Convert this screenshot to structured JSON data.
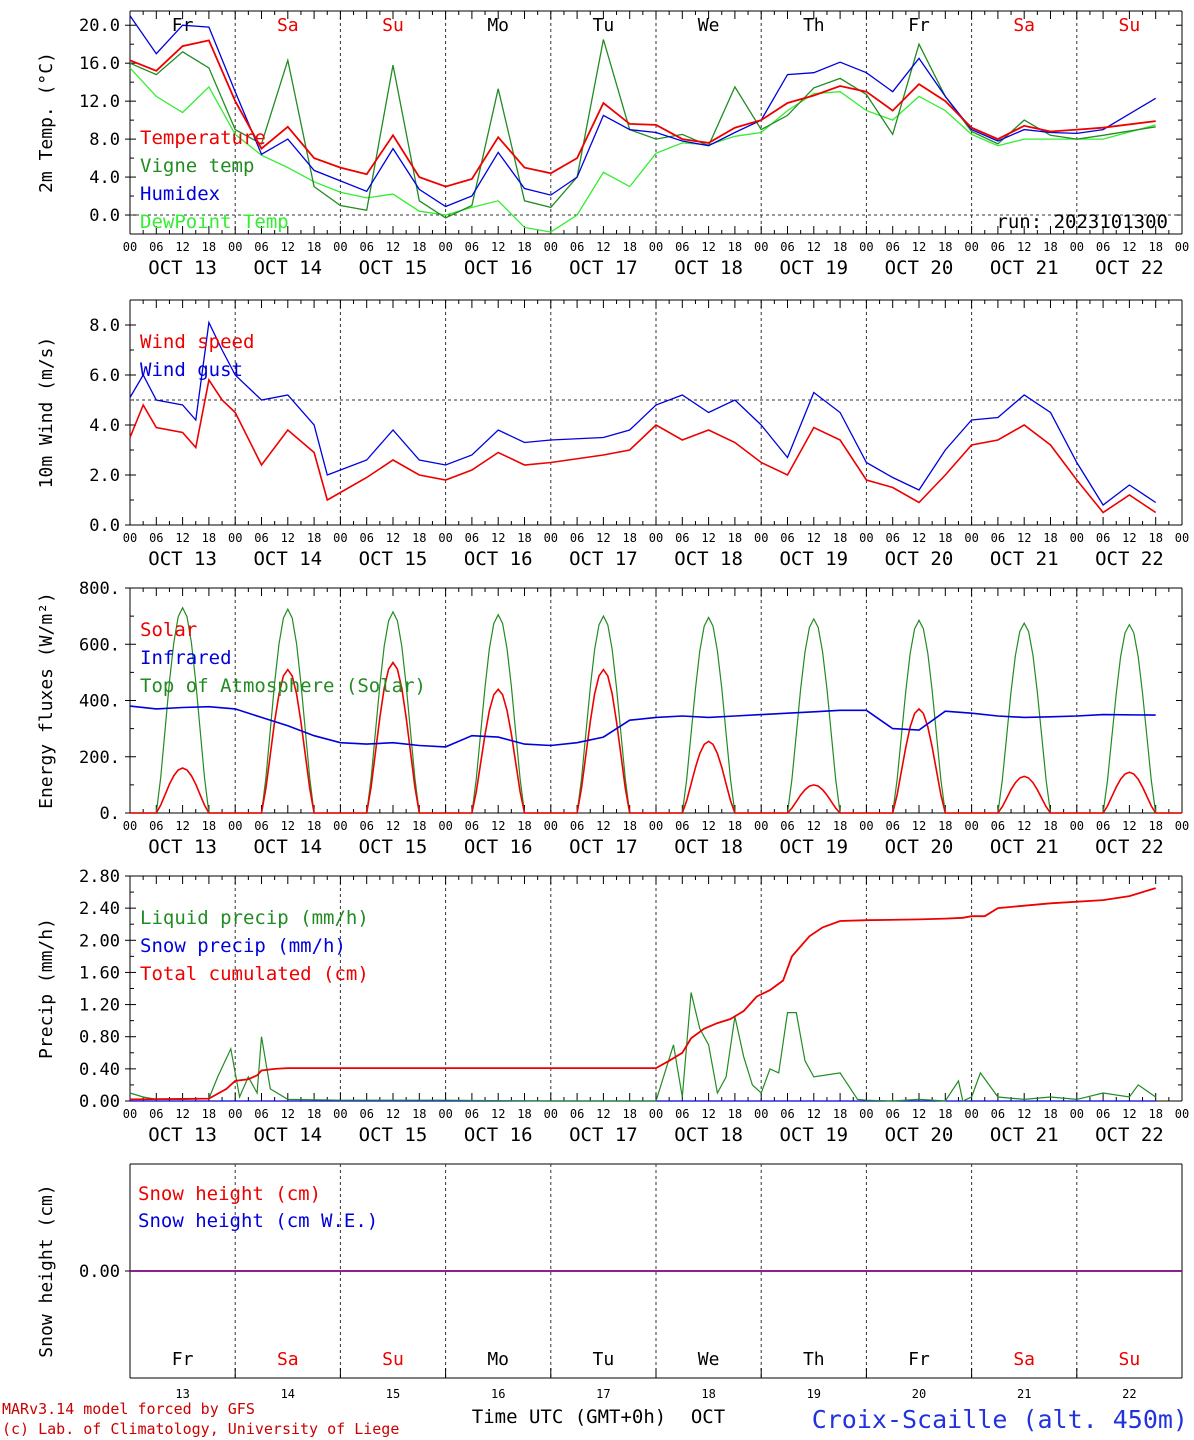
{
  "run_label": "run: 2023101300",
  "x_axis": {
    "hour_labels": [
      "00",
      "06",
      "12",
      "18"
    ],
    "end_label": "00",
    "dates": [
      "OCT 13",
      "OCT 14",
      "OCT 15",
      "OCT 16",
      "OCT 17",
      "OCT 18",
      "OCT 19",
      "OCT 20",
      "OCT 21",
      "OCT 22"
    ],
    "day_names": [
      {
        "name": "Fr",
        "color": "#000000"
      },
      {
        "name": "Sa",
        "color": "#ee0000"
      },
      {
        "name": "Su",
        "color": "#ee0000"
      },
      {
        "name": "Mo",
        "color": "#000000"
      },
      {
        "name": "Tu",
        "color": "#000000"
      },
      {
        "name": "We",
        "color": "#000000"
      },
      {
        "name": "Th",
        "color": "#000000"
      },
      {
        "name": "Fr",
        "color": "#000000"
      },
      {
        "name": "Sa",
        "color": "#ee0000"
      },
      {
        "name": "Su",
        "color": "#ee0000"
      }
    ],
    "day_numbers": [
      "13",
      "14",
      "15",
      "16",
      "17",
      "18",
      "19",
      "20",
      "21",
      "22"
    ],
    "time_label": "Time UTC (GMT+0h)",
    "month_label": "OCT"
  },
  "footer": {
    "line1": "MARv3.14 model forced by GFS",
    "line2": "(c) Lab. of Climatology, University of Liege",
    "station": "Croix-Scaille (alt. 450m)"
  },
  "chart_data": [
    {
      "type": "line",
      "ylabel": "2m Temp. (°C)",
      "ylim": [
        -2,
        21.5
      ],
      "yticks": [
        0,
        4,
        8,
        12,
        16,
        20
      ],
      "ytick_labels": [
        "0.0",
        "4.0",
        "8.0",
        "12.0",
        "16.0",
        "20.0"
      ],
      "ref_line": 0,
      "x_hours": [
        0,
        6,
        12,
        18,
        24,
        30,
        36,
        42,
        48,
        54,
        60,
        66,
        72,
        78,
        84,
        90,
        96,
        102,
        108,
        114,
        120,
        126,
        132,
        138,
        144,
        150,
        156,
        162,
        168,
        174,
        180,
        186,
        192,
        198,
        204,
        210,
        216,
        222,
        234
      ],
      "series": [
        {
          "name": "Temperature",
          "color": "#ee0000",
          "values": [
            16.3,
            15.2,
            17.8,
            18.4,
            12.0,
            7.0,
            9.3,
            6.0,
            5.0,
            4.3,
            8.4,
            4.0,
            3.0,
            3.8,
            8.2,
            5.0,
            4.4,
            6.0,
            11.8,
            9.6,
            9.5,
            8.0,
            7.6,
            9.2,
            10.0,
            11.8,
            12.6,
            13.6,
            13.0,
            11.0,
            13.8,
            12.0,
            9.2,
            8.0,
            9.4,
            8.8,
            9.0,
            9.2,
            9.9
          ]
        },
        {
          "name": "Vigne temp",
          "color": "#228b22",
          "values": [
            16.0,
            14.8,
            17.2,
            15.5,
            9.0,
            7.5,
            16.3,
            3.0,
            1.0,
            0.5,
            15.8,
            1.5,
            -0.3,
            1.0,
            13.3,
            1.5,
            0.8,
            4.0,
            18.5,
            9.0,
            8.0,
            8.5,
            7.3,
            13.5,
            9.0,
            10.5,
            13.4,
            14.4,
            12.7,
            8.5,
            18.0,
            12.5,
            8.8,
            7.5,
            10.0,
            8.4,
            8.0,
            8.4,
            9.3
          ]
        },
        {
          "name": "Humidex",
          "color": "#0000dd",
          "values": [
            21.0,
            17.0,
            20.0,
            19.8,
            13.0,
            6.4,
            8.0,
            4.7,
            3.6,
            2.5,
            7.0,
            2.7,
            0.9,
            2.0,
            6.6,
            2.8,
            2.1,
            4.0,
            10.5,
            9.0,
            8.7,
            7.8,
            7.3,
            8.7,
            10.0,
            14.8,
            15.0,
            16.1,
            15.0,
            13.0,
            16.5,
            12.5,
            9.0,
            7.8,
            9.0,
            8.7,
            8.6,
            9.0,
            12.3
          ]
        },
        {
          "name": "DewPoint Temp",
          "color": "#33ee33",
          "values": [
            15.5,
            12.5,
            10.8,
            13.5,
            8.5,
            6.3,
            5.0,
            3.5,
            2.4,
            1.8,
            2.2,
            0.4,
            0.0,
            0.8,
            1.5,
            -1.3,
            -1.8,
            0.0,
            4.5,
            3.0,
            6.5,
            7.6,
            7.4,
            8.3,
            8.7,
            11.0,
            12.8,
            13.0,
            11.0,
            10.0,
            12.5,
            11.0,
            8.5,
            7.3,
            8.0,
            8.0,
            8.0,
            8.0,
            9.5
          ]
        }
      ]
    },
    {
      "type": "line",
      "ylabel": "10m Wind (m/s)",
      "ylim": [
        0,
        9.0
      ],
      "yticks": [
        0,
        2,
        4,
        6,
        8
      ],
      "ytick_labels": [
        "0.0",
        "2.0",
        "4.0",
        "6.0",
        "8.0"
      ],
      "ref_line": 5,
      "x_hours": [
        0,
        3,
        6,
        12,
        15,
        18,
        21,
        24,
        30,
        36,
        42,
        45,
        48,
        54,
        60,
        66,
        72,
        78,
        84,
        90,
        96,
        108,
        114,
        120,
        126,
        132,
        138,
        144,
        150,
        156,
        162,
        168,
        174,
        180,
        186,
        192,
        198,
        204,
        210,
        216,
        222,
        228,
        234
      ],
      "series": [
        {
          "name": "Wind speed",
          "color": "#ee0000",
          "values": [
            3.5,
            4.8,
            3.9,
            3.7,
            3.1,
            5.8,
            5.0,
            4.5,
            2.4,
            3.8,
            2.9,
            1.0,
            1.3,
            1.9,
            2.6,
            2.0,
            1.8,
            2.2,
            2.9,
            2.4,
            2.5,
            2.8,
            3.0,
            4.0,
            3.4,
            3.8,
            3.3,
            2.5,
            2.0,
            3.9,
            3.4,
            1.8,
            1.5,
            0.9,
            2.0,
            3.2,
            3.4,
            4.0,
            3.2,
            1.8,
            0.5,
            1.2,
            0.5
          ]
        },
        {
          "name": "Wind gust",
          "color": "#0000dd",
          "values": [
            5.1,
            6.0,
            5.0,
            4.8,
            4.2,
            8.1,
            7.0,
            6.0,
            5.0,
            5.2,
            4.0,
            2.0,
            2.2,
            2.6,
            3.8,
            2.6,
            2.4,
            2.8,
            3.8,
            3.3,
            3.4,
            3.5,
            3.8,
            4.8,
            5.2,
            4.5,
            5.0,
            4.0,
            2.7,
            5.3,
            4.5,
            2.5,
            1.9,
            1.4,
            3.0,
            4.2,
            4.3,
            5.2,
            4.5,
            2.5,
            0.8,
            1.6,
            0.9
          ]
        }
      ]
    },
    {
      "type": "line",
      "ylabel": "Energy fluxes (W/m²)",
      "ylim": [
        0,
        800
      ],
      "yticks": [
        0,
        200,
        400,
        600,
        800
      ],
      "ytick_labels": [
        "0.",
        "200.",
        "400.",
        "600.",
        "800."
      ],
      "series": [
        {
          "name": "Solar",
          "color": "#ee0000",
          "peaks": [
            160,
            510,
            535,
            440,
            510,
            255,
            100,
            370,
            130,
            145
          ]
        },
        {
          "name": "Infrared",
          "color": "#0000dd",
          "x_hours": [
            0,
            6,
            12,
            18,
            24,
            30,
            36,
            42,
            48,
            54,
            60,
            66,
            72,
            78,
            84,
            90,
            96,
            102,
            108,
            114,
            120,
            126,
            132,
            138,
            144,
            150,
            156,
            162,
            168,
            174,
            180,
            186,
            192,
            198,
            204,
            210,
            216,
            222,
            234
          ],
          "values": [
            380,
            370,
            375,
            378,
            370,
            340,
            310,
            275,
            250,
            245,
            250,
            240,
            235,
            275,
            270,
            245,
            240,
            250,
            270,
            330,
            340,
            345,
            340,
            345,
            350,
            355,
            360,
            365,
            365,
            300,
            295,
            362,
            355,
            345,
            340,
            342,
            345,
            350,
            348
          ]
        },
        {
          "name": "Top of Atmosphere (Solar)",
          "color": "#228b22",
          "peaks": [
            730,
            725,
            715,
            705,
            700,
            695,
            690,
            685,
            675,
            670
          ]
        }
      ]
    },
    {
      "type": "line",
      "ylabel": "Precip (mm/h)",
      "ylim": [
        0,
        2.8
      ],
      "yticks": [
        0,
        0.4,
        0.8,
        1.2,
        1.6,
        2.0,
        2.4,
        2.8
      ],
      "ytick_labels": [
        "0.00",
        "0.40",
        "0.80",
        "1.20",
        "1.60",
        "2.00",
        "2.40",
        "2.80"
      ],
      "series": [
        {
          "name": "Liquid precip (mm/h)",
          "color": "#228b22",
          "x_hours": [
            0,
            3,
            6,
            12,
            18,
            20,
            23,
            25,
            27,
            29,
            30,
            32,
            36,
            48,
            60,
            72,
            96,
            120,
            124,
            126,
            128,
            130,
            132,
            134,
            136,
            138,
            140,
            142,
            144,
            146,
            148,
            150,
            152,
            154,
            156,
            162,
            166,
            168,
            174,
            180,
            186,
            189,
            190,
            192,
            194,
            198,
            204,
            210,
            216,
            222,
            228,
            230,
            234
          ],
          "values": [
            0.1,
            0.05,
            0.02,
            0.02,
            0.03,
            0.3,
            0.65,
            0.05,
            0.3,
            0.1,
            0.8,
            0.15,
            0.02,
            0.01,
            0.01,
            0.01,
            0.0,
            0.0,
            0.7,
            0.05,
            1.35,
            0.9,
            0.7,
            0.1,
            0.3,
            1.05,
            0.55,
            0.2,
            0.1,
            0.4,
            0.35,
            1.1,
            1.1,
            0.5,
            0.3,
            0.35,
            0.02,
            0.01,
            0.0,
            0.02,
            0.0,
            0.25,
            0.0,
            0.05,
            0.35,
            0.05,
            0.02,
            0.05,
            0.02,
            0.1,
            0.05,
            0.2,
            0.05
          ]
        },
        {
          "name": "Snow precip (mm/h)",
          "color": "#0000dd",
          "x_hours": [
            0,
            234
          ],
          "values": [
            0,
            0
          ]
        },
        {
          "name": "Total cumulated (cm)",
          "color": "#ee0000",
          "x_hours": [
            0,
            18,
            22,
            24,
            27,
            29,
            30,
            33,
            36,
            60,
            96,
            118,
            120,
            123,
            126,
            128,
            131,
            134,
            137,
            140,
            143,
            146,
            149,
            151,
            155,
            158,
            162,
            168,
            180,
            186,
            190,
            192,
            195,
            198,
            210,
            222,
            228,
            234
          ],
          "values": [
            0.02,
            0.03,
            0.15,
            0.25,
            0.27,
            0.32,
            0.38,
            0.4,
            0.41,
            0.41,
            0.41,
            0.41,
            0.41,
            0.5,
            0.6,
            0.78,
            0.9,
            0.97,
            1.02,
            1.12,
            1.3,
            1.38,
            1.5,
            1.8,
            2.05,
            2.16,
            2.24,
            2.25,
            2.26,
            2.27,
            2.28,
            2.3,
            2.3,
            2.4,
            2.46,
            2.5,
            2.55,
            2.65
          ]
        }
      ]
    },
    {
      "type": "line",
      "ylabel": "Snow height (cm)",
      "yticks": [
        0
      ],
      "ytick_labels": [
        "0.00"
      ],
      "series": [
        {
          "name": "Snow height (cm)",
          "color": "#ee0000",
          "x_hours": [
            0,
            234
          ],
          "values": [
            0,
            0
          ]
        },
        {
          "name": "Snow height (cm W.E.)",
          "color": "#0000dd",
          "x_hours": [
            0,
            234
          ],
          "values": [
            0,
            0
          ]
        }
      ]
    }
  ]
}
